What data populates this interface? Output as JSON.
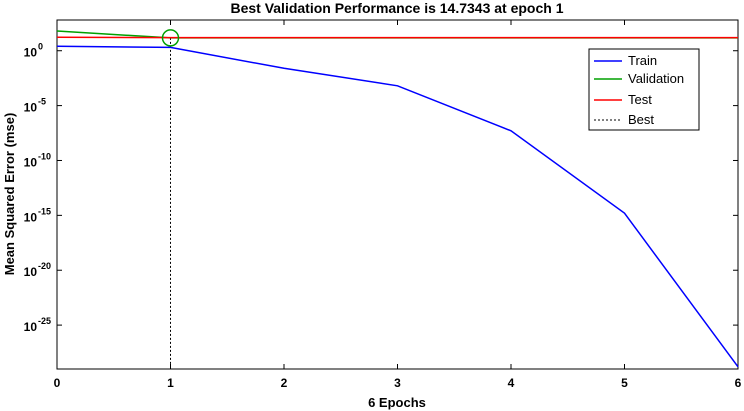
{
  "chart_data": {
    "type": "line",
    "title": "Best Validation Performance is 14.7343 at epoch 1",
    "xlabel": "6 Epochs",
    "ylabel": "Mean Squared Error  (mse)",
    "xlim": [
      0,
      6
    ],
    "ylim_log10": [
      -29,
      2.8
    ],
    "y_scale": "log",
    "x_ticks": [
      "0",
      "1",
      "2",
      "3",
      "4",
      "5",
      "6"
    ],
    "y_ticks": [
      {
        "base": "10",
        "exp": "0",
        "log10": 0
      },
      {
        "base": "10",
        "exp": "-5",
        "log10": -5
      },
      {
        "base": "10",
        "exp": "-10",
        "log10": -10
      },
      {
        "base": "10",
        "exp": "-15",
        "log10": -15
      },
      {
        "base": "10",
        "exp": "-20",
        "log10": -20
      },
      {
        "base": "10",
        "exp": "-25",
        "log10": -25
      }
    ],
    "series": [
      {
        "name": "Train",
        "color": "#0000ff",
        "x": [
          0,
          1,
          2,
          3,
          4,
          5,
          6
        ],
        "log10_y": [
          0.4,
          0.3,
          -1.6,
          -3.2,
          -7.3,
          -14.8,
          -28.8
        ]
      },
      {
        "name": "Validation",
        "color": "#00a000",
        "x": [
          0,
          1,
          2,
          3,
          4,
          5,
          6
        ],
        "log10_y": [
          1.8,
          1.17,
          1.17,
          1.17,
          1.17,
          1.17,
          1.17
        ]
      },
      {
        "name": "Test",
        "color": "#ff0000",
        "x": [
          0,
          1,
          2,
          3,
          4,
          5,
          6
        ],
        "log10_y": [
          1.22,
          1.2,
          1.2,
          1.2,
          1.2,
          1.2,
          1.2
        ]
      }
    ],
    "best": {
      "name": "Best",
      "epoch": 1,
      "value": 14.7343,
      "log10_value": 1.1683
    },
    "legend": {
      "placement": "top-right",
      "entries": [
        "Train",
        "Validation",
        "Test",
        "Best"
      ]
    },
    "grid": false
  }
}
